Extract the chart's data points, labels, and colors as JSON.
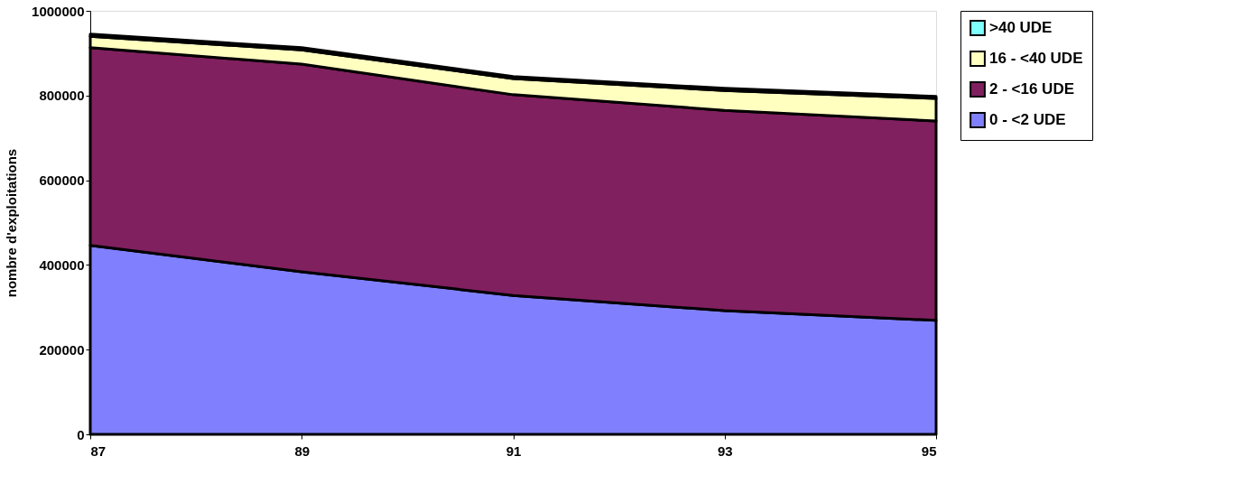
{
  "chart_data": {
    "type": "area",
    "stacked": true,
    "ylabel": "nombre d'exploitations",
    "x": [
      87,
      89,
      91,
      93,
      95
    ],
    "xlim": [
      87,
      95
    ],
    "xticks": [
      87,
      89,
      91,
      93,
      95
    ],
    "ylim": [
      0,
      1000000
    ],
    "yticks": [
      0,
      200000,
      400000,
      600000,
      800000,
      1000000
    ],
    "legend": "right",
    "grid": false,
    "series": [
      {
        "name": "0 - <2 UDE",
        "color": "#8080ff",
        "values": [
          446000,
          384000,
          328000,
          292000,
          269000
        ]
      },
      {
        "name": "2 - <16 UDE",
        "color": "#80205f",
        "values": [
          467000,
          490000,
          474000,
          473000,
          471000
        ]
      },
      {
        "name": "16 - <40 UDE",
        "color": "#ffffc0",
        "values": [
          27000,
          34000,
          38000,
          47000,
          53000
        ]
      },
      {
        "name": ">40 UDE",
        "color": "#80ffff",
        "values": [
          5000,
          5000,
          5000,
          5000,
          5000
        ]
      }
    ]
  }
}
